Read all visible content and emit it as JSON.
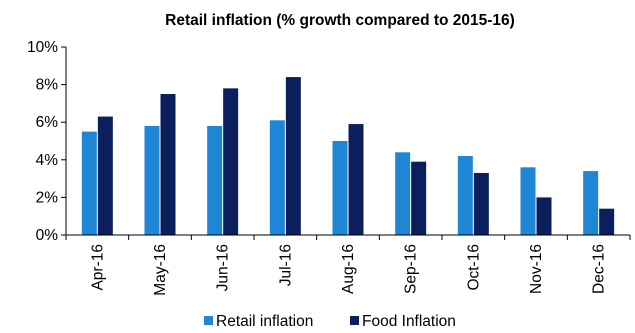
{
  "chart_data": {
    "type": "bar",
    "title": "Retail inflation (% growth compared to 2015-16)",
    "xlabel": "",
    "ylabel": "",
    "categories": [
      "Apr-16",
      "May-16",
      "Jun-16",
      "Jul-16",
      "Aug-16",
      "Sep-16",
      "Oct-16",
      "Nov-16",
      "Dec-16"
    ],
    "series": [
      {
        "name": "Retail inflation",
        "color": "#1f86d6",
        "values": [
          5.5,
          5.8,
          5.8,
          6.1,
          5.0,
          4.4,
          4.2,
          3.6,
          3.4
        ]
      },
      {
        "name": "Food Inflation",
        "color": "#0b1f5c",
        "values": [
          6.3,
          7.5,
          7.8,
          8.4,
          5.9,
          3.9,
          3.3,
          2.0,
          1.4
        ]
      }
    ],
    "ylim": [
      0,
      10
    ],
    "yticks": [
      0,
      2,
      4,
      6,
      8,
      10
    ],
    "ytick_labels": [
      "0%",
      "2%",
      "4%",
      "6%",
      "8%",
      "10%"
    ],
    "grid": false,
    "legend_position": "bottom"
  }
}
